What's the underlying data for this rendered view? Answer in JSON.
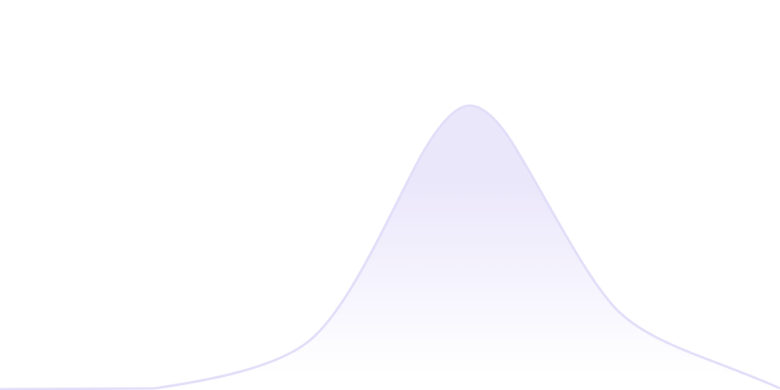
{
  "background": "#ffffff",
  "curve": {
    "stroke_color": "#e2ddf8",
    "fill_top_color": "#ebe7fb",
    "fill_bottom_color": "#ffffff"
  }
}
